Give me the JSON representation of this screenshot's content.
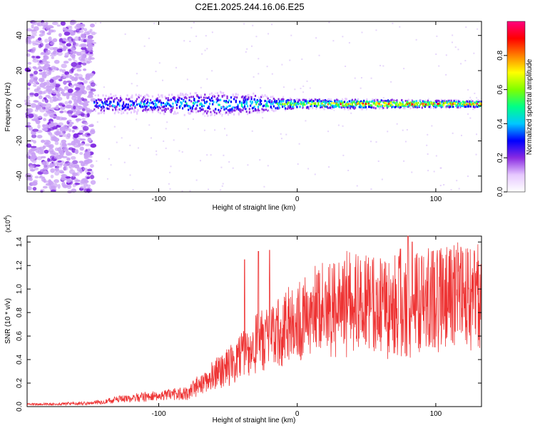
{
  "title": "C2E1.2025.244.16.06.E25",
  "chart_data": [
    {
      "type": "heatmap",
      "xlabel": "Height of straight line (km)",
      "ylabel": "Frequency (Hz)",
      "xlim": [
        -195,
        133
      ],
      "ylim": [
        -49,
        48
      ],
      "xticks": [
        -100,
        0,
        100
      ],
      "yticks": [
        -40,
        -20,
        0,
        20,
        40
      ],
      "colorbar": {
        "label": "Normalized spectral amplitude",
        "range": [
          0,
          1
        ],
        "ticks": [
          "0.0",
          "0.2",
          "0.4",
          "0.6",
          "0.8"
        ],
        "colors": [
          "#ffffff",
          "#e6c8ff",
          "#8a2be2",
          "#0000ff",
          "#00c8ff",
          "#00ff88",
          "#7fff00",
          "#ffff00",
          "#ff8000",
          "#ff0000",
          "#ff0080"
        ]
      },
      "band": {
        "center_frequency": 1,
        "start_height": -147,
        "half_width_points": [
          [
            -147,
            4
          ],
          [
            -100,
            4
          ],
          [
            -60,
            5
          ],
          [
            -30,
            4
          ],
          [
            0,
            2
          ],
          [
            50,
            2
          ],
          [
            100,
            1.5
          ],
          [
            133,
            1.5
          ]
        ],
        "peak_amplitude_points": [
          [
            -147,
            0.4
          ],
          [
            -100,
            0.45
          ],
          [
            -50,
            0.5
          ],
          [
            -20,
            0.55
          ],
          [
            0,
            0.7
          ],
          [
            50,
            0.9
          ],
          [
            100,
            0.95
          ],
          [
            133,
            0.95
          ]
        ]
      },
      "noise_region": {
        "x_range": [
          -195,
          -147
        ],
        "amplitude": 0.15
      }
    },
    {
      "type": "line",
      "xlabel": "Height of straight line (km)",
      "ylabel": "SNR (10 * v/v)",
      "multiplier": "(x10",
      "multiplier_exp": "4",
      "xlim": [
        -195,
        133
      ],
      "ylim": [
        0,
        1.45
      ],
      "xticks": [
        -100,
        0,
        100
      ],
      "yticks": [
        0.0,
        0.2,
        0.4,
        0.6,
        0.8,
        1.0,
        1.2,
        1.4
      ],
      "color": "#ee3333",
      "envelope": [
        [
          -195,
          0.02
        ],
        [
          -150,
          0.03
        ],
        [
          -120,
          0.08
        ],
        [
          -100,
          0.1
        ],
        [
          -80,
          0.12
        ],
        [
          -65,
          0.25
        ],
        [
          -50,
          0.35
        ],
        [
          -35,
          0.5
        ],
        [
          -25,
          0.6
        ],
        [
          -15,
          0.65
        ],
        [
          0,
          0.78
        ],
        [
          20,
          0.88
        ],
        [
          40,
          0.95
        ],
        [
          60,
          0.92
        ],
        [
          80,
          0.95
        ],
        [
          100,
          0.98
        ],
        [
          133,
          1.0
        ]
      ],
      "spikes": [
        [
          -38,
          1.25
        ],
        [
          -28,
          1.32
        ],
        [
          -20,
          1.33
        ],
        [
          80,
          1.45
        ],
        [
          83,
          1.4
        ],
        [
          98,
          1.32
        ]
      ]
    }
  ]
}
